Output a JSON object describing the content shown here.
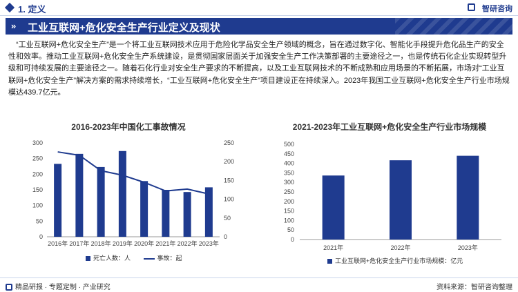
{
  "header": {
    "section": "1. 定义",
    "brand": "智研咨询"
  },
  "title": "工业互联网+危化安全生产行业定义及现状",
  "body_text": "“工业互联网+危化安全生产”是一个将工业互联网技术应用于危险化学品安全生产领域的概念，旨在通过数字化、智能化手段提升危化品生产的安全性和效率。推动工业互联网+危化安全生产系统建设，是贯彻国家层面关于加强安全生产工作决策部署的主要途径之一，也是传统石化企业实现转型升级和可持续发展的主要途径之一。随着石化行业对安全生产要求的不断提高，以及工业互联网技术的不断成熟和应用场景的不断拓展，市场对“工业互联网+危化安全生产”解决方案的需求持续增长，“工业互联网+危化安全生产”项目建设正在持续深入。2023年我国工业互联网+危化安全生产行业市场规模达439.7亿元。",
  "footer": {
    "left": "精品研报 · 专题定制 · 产业研究",
    "right": "资料来源：智研咨询整理"
  },
  "colors": {
    "primary": "#1f3b8f",
    "line": "#1f3b8f"
  },
  "chart_data": [
    {
      "type": "bar",
      "title": "2016-2023年中国化工事故情况",
      "categories": [
        "2016年",
        "2017年",
        "2018年",
        "2019年",
        "2020年",
        "2021年",
        "2022年",
        "2023年"
      ],
      "series": [
        {
          "name": "死亡人数：人",
          "type": "bar",
          "axis": "left",
          "values": [
            233,
            265,
            223,
            274,
            178,
            150,
            143,
            158
          ]
        },
        {
          "name": "事故：起",
          "type": "line",
          "axis": "right",
          "values": [
            226,
            217,
            176,
            164,
            145,
            122,
            127,
            114
          ]
        }
      ],
      "ylim_left": [
        0,
        300
      ],
      "yticks_left": [
        0,
        50,
        100,
        150,
        200,
        250,
        300
      ],
      "ylim_right": [
        0,
        250
      ],
      "yticks_right": [
        0,
        50,
        100,
        150,
        200,
        250
      ],
      "legend": [
        "死亡人数：人",
        "事故：起"
      ],
      "legend_position": "bottom",
      "grid": false
    },
    {
      "type": "bar",
      "title": "2021-2023年工业互联网+危化安全生产行业市场规模",
      "categories": [
        "2021年",
        "2022年",
        "2023年"
      ],
      "series": [
        {
          "name": "工业互联网+危化安全生产行业市场规模：亿元",
          "values": [
            336,
            416,
            439.7
          ]
        }
      ],
      "ylim": [
        0,
        500
      ],
      "yticks": [
        0,
        50,
        100,
        150,
        200,
        250,
        300,
        350,
        400,
        450,
        500
      ],
      "legend": [
        "工业互联网+危化安全生产行业市场规模：亿元"
      ],
      "legend_position": "bottom",
      "grid": false
    }
  ]
}
